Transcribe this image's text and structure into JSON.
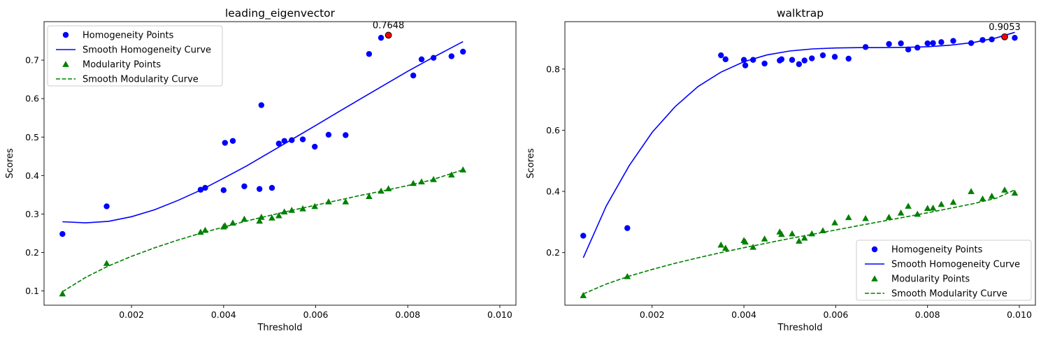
{
  "chart_data": [
    {
      "type": "scatter",
      "title": "leading_eigenvector",
      "xlabel": "Threshold",
      "ylabel": "Scores",
      "xlim": [
        0.0001,
        0.01035
      ],
      "ylim": [
        0.063,
        0.8
      ],
      "xticks": [
        0.002,
        0.004,
        0.006,
        0.008,
        0.01
      ],
      "xtick_labels": [
        "0.002",
        "0.004",
        "0.006",
        "0.008",
        "0.010"
      ],
      "yticks": [
        0.1,
        0.2,
        0.3,
        0.4,
        0.5,
        0.6,
        0.7
      ],
      "ytick_labels": [
        "0.1",
        "0.2",
        "0.3",
        "0.4",
        "0.5",
        "0.6",
        "0.7"
      ],
      "legend_position": "top-left",
      "grid": false,
      "colors": {
        "homogeneity": "#0000ff",
        "modularity": "#008000",
        "max_point": "#ff0000"
      },
      "series": [
        {
          "name": "Homogeneity Points",
          "kind": "scatter",
          "marker": "circle",
          "x": [
            0.0005,
            0.00146,
            0.0035,
            0.0036,
            0.004,
            0.00403,
            0.0042,
            0.00445,
            0.00478,
            0.00482,
            0.00505,
            0.0052,
            0.00532,
            0.00548,
            0.00572,
            0.00598,
            0.00628,
            0.00665,
            0.00716,
            0.00742,
            0.00812,
            0.0083,
            0.00856,
            0.00895,
            0.0092
          ],
          "y": [
            0.248,
            0.32,
            0.363,
            0.368,
            0.362,
            0.485,
            0.49,
            0.372,
            0.365,
            0.583,
            0.368,
            0.483,
            0.49,
            0.492,
            0.494,
            0.475,
            0.506,
            0.505,
            0.716,
            0.758,
            0.66,
            0.702,
            0.706,
            0.71,
            0.722
          ]
        },
        {
          "name": "Smooth Homogeneity Curve",
          "kind": "line",
          "style": "solid",
          "x": [
            0.0005,
            0.001,
            0.0015,
            0.002,
            0.0025,
            0.003,
            0.0035,
            0.004,
            0.0045,
            0.005,
            0.0055,
            0.006,
            0.0065,
            0.007,
            0.0075,
            0.008,
            0.0085,
            0.0092
          ],
          "y": [
            0.28,
            0.277,
            0.281,
            0.293,
            0.311,
            0.335,
            0.362,
            0.393,
            0.425,
            0.46,
            0.495,
            0.53,
            0.566,
            0.601,
            0.636,
            0.671,
            0.704,
            0.748
          ]
        },
        {
          "name": "Modularity Points",
          "kind": "scatter",
          "marker": "triangle",
          "x": [
            0.0005,
            0.00146,
            0.0035,
            0.0036,
            0.004,
            0.00403,
            0.0042,
            0.00445,
            0.00478,
            0.00482,
            0.00505,
            0.0052,
            0.00532,
            0.00548,
            0.00572,
            0.00598,
            0.00628,
            0.00665,
            0.00716,
            0.00742,
            0.00758,
            0.00812,
            0.0083,
            0.00856,
            0.00895,
            0.0092
          ],
          "y": [
            0.093,
            0.172,
            0.253,
            0.258,
            0.267,
            0.27,
            0.277,
            0.287,
            0.282,
            0.292,
            0.29,
            0.296,
            0.306,
            0.31,
            0.314,
            0.32,
            0.332,
            0.332,
            0.346,
            0.36,
            0.366,
            0.38,
            0.384,
            0.39,
            0.402,
            0.415
          ]
        },
        {
          "name": "Smooth Modularity Curve",
          "kind": "line",
          "style": "dashed",
          "x": [
            0.0005,
            0.001,
            0.0015,
            0.002,
            0.0025,
            0.003,
            0.0035,
            0.004,
            0.0045,
            0.005,
            0.0055,
            0.006,
            0.0065,
            0.007,
            0.0075,
            0.008,
            0.0085,
            0.0092
          ],
          "y": [
            0.098,
            0.135,
            0.165,
            0.19,
            0.212,
            0.232,
            0.25,
            0.266,
            0.282,
            0.296,
            0.31,
            0.323,
            0.336,
            0.349,
            0.361,
            0.374,
            0.388,
            0.415
          ]
        }
      ],
      "max_point": {
        "x": 0.00758,
        "y": 0.7648,
        "label": "0.7648"
      }
    },
    {
      "type": "scatter",
      "title": "walktrap",
      "xlabel": "Threshold",
      "ylabel": "Scores",
      "xlim": [
        0.0001,
        0.01035
      ],
      "ylim": [
        0.028,
        0.955
      ],
      "xticks": [
        0.002,
        0.004,
        0.006,
        0.008,
        0.01
      ],
      "xtick_labels": [
        "0.002",
        "0.004",
        "0.006",
        "0.008",
        "0.010"
      ],
      "yticks": [
        0.2,
        0.4,
        0.6,
        0.8
      ],
      "ytick_labels": [
        "0.2",
        "0.4",
        "0.6",
        "0.8"
      ],
      "legend_position": "bottom-right",
      "grid": false,
      "colors": {
        "homogeneity": "#0000ff",
        "modularity": "#008000",
        "max_point": "#ff0000"
      },
      "series": [
        {
          "name": "Homogeneity Points",
          "kind": "scatter",
          "marker": "circle",
          "x": [
            0.0005,
            0.00146,
            0.0035,
            0.0036,
            0.004,
            0.00403,
            0.0042,
            0.00445,
            0.00478,
            0.00482,
            0.00505,
            0.0052,
            0.00532,
            0.00548,
            0.00572,
            0.00598,
            0.00628,
            0.00665,
            0.00716,
            0.00742,
            0.00758,
            0.00778,
            0.008,
            0.00812,
            0.0083,
            0.00856,
            0.00895,
            0.0092,
            0.0094,
            0.00968,
            0.0099
          ],
          "y": [
            0.255,
            0.28,
            0.845,
            0.832,
            0.83,
            0.812,
            0.83,
            0.818,
            0.828,
            0.832,
            0.83,
            0.816,
            0.828,
            0.835,
            0.845,
            0.84,
            0.834,
            0.872,
            0.882,
            0.884,
            0.864,
            0.87,
            0.884,
            0.885,
            0.888,
            0.892,
            0.885,
            0.895,
            0.897,
            0.9053,
            0.902
          ]
        },
        {
          "name": "Smooth Homogeneity Curve",
          "kind": "line",
          "style": "solid",
          "x": [
            0.0005,
            0.001,
            0.0015,
            0.002,
            0.0025,
            0.003,
            0.0035,
            0.004,
            0.0045,
            0.005,
            0.0055,
            0.006,
            0.0065,
            0.007,
            0.0075,
            0.008,
            0.0085,
            0.009,
            0.0095,
            0.0099
          ],
          "y": [
            0.183,
            0.352,
            0.484,
            0.593,
            0.677,
            0.743,
            0.79,
            0.824,
            0.846,
            0.859,
            0.866,
            0.869,
            0.87,
            0.87,
            0.871,
            0.873,
            0.878,
            0.887,
            0.902,
            0.92
          ]
        },
        {
          "name": "Modularity Points",
          "kind": "scatter",
          "marker": "triangle",
          "x": [
            0.0005,
            0.00146,
            0.0035,
            0.0036,
            0.004,
            0.00403,
            0.0042,
            0.00445,
            0.00478,
            0.00482,
            0.00505,
            0.0052,
            0.00532,
            0.00548,
            0.00572,
            0.00598,
            0.00628,
            0.00665,
            0.00716,
            0.00742,
            0.00758,
            0.00778,
            0.008,
            0.00812,
            0.0083,
            0.00856,
            0.00895,
            0.0092,
            0.0094,
            0.00968,
            0.0099
          ],
          "y": [
            0.06,
            0.122,
            0.225,
            0.215,
            0.24,
            0.235,
            0.218,
            0.245,
            0.268,
            0.26,
            0.262,
            0.238,
            0.248,
            0.262,
            0.272,
            0.298,
            0.315,
            0.312,
            0.316,
            0.33,
            0.352,
            0.326,
            0.345,
            0.346,
            0.358,
            0.365,
            0.4,
            0.376,
            0.385,
            0.405,
            0.395
          ]
        },
        {
          "name": "Smooth Modularity Curve",
          "kind": "line",
          "style": "dashed",
          "x": [
            0.0005,
            0.001,
            0.0015,
            0.002,
            0.0025,
            0.003,
            0.0035,
            0.004,
            0.0045,
            0.005,
            0.0055,
            0.006,
            0.0065,
            0.007,
            0.0075,
            0.008,
            0.0085,
            0.009,
            0.0095,
            0.0099
          ],
          "y": [
            0.065,
            0.097,
            0.123,
            0.145,
            0.165,
            0.183,
            0.2,
            0.216,
            0.231,
            0.246,
            0.26,
            0.274,
            0.288,
            0.302,
            0.316,
            0.33,
            0.345,
            0.36,
            0.378,
            0.405
          ]
        }
      ],
      "max_point": {
        "x": 0.00968,
        "y": 0.9053,
        "label": "0.9053"
      }
    }
  ]
}
